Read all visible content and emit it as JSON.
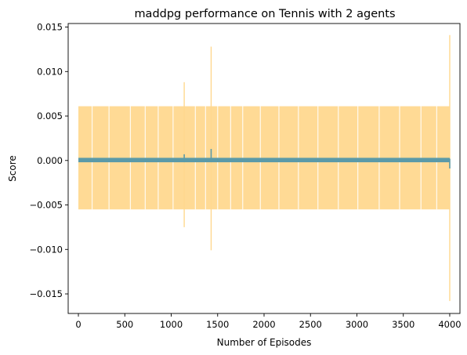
{
  "chart_data": {
    "type": "line",
    "title": "maddpg performance on Tennis with 2 agents",
    "xlabel": "Number of Episodes",
    "ylabel": "Score",
    "xlim": [
      -110,
      4110
    ],
    "ylim": [
      -0.0172,
      0.0154
    ],
    "xticks": [
      0,
      500,
      1000,
      1500,
      2000,
      2500,
      3000,
      3500,
      4000
    ],
    "xtick_labels": [
      "0",
      "500",
      "1000",
      "1500",
      "2000",
      "2500",
      "3000",
      "3500",
      "4000"
    ],
    "yticks": [
      -0.015,
      -0.01,
      -0.005,
      0.0,
      0.005,
      0.01,
      0.015
    ],
    "ytick_labels": [
      "−0.015",
      "−0.010",
      "−0.005",
      "0.000",
      "0.005",
      "0.010",
      "0.015"
    ],
    "grid": false,
    "series": [
      {
        "style": "band",
        "color": "#ffd88f",
        "x_range": [
          0,
          4000
        ],
        "upper": 0.0061,
        "lower": -0.0055,
        "gaps_x": [
          148,
          330,
          560,
          720,
          860,
          1020,
          1260,
          1370,
          1500,
          1640,
          1770,
          1960,
          2160,
          2370,
          2580,
          2800,
          3010,
          3240,
          3460,
          3690,
          3860
        ],
        "spikes": [
          {
            "x": 1140,
            "upper": 0.0088,
            "lower": -0.0075
          },
          {
            "x": 1430,
            "upper": 0.0128,
            "lower": -0.0101
          },
          {
            "x": 4000,
            "upper": 0.0141,
            "lower": -0.0158
          }
        ]
      },
      {
        "style": "line",
        "color": "#5b9aa8",
        "x_range": [
          0,
          4000
        ],
        "upper": 0.0003,
        "lower": -0.0002,
        "spikes": [
          {
            "x": 1140,
            "upper": 0.0007,
            "lower": -0.0002
          },
          {
            "x": 1430,
            "upper": 0.0013,
            "lower": -0.0002
          },
          {
            "x": 4000,
            "upper": 0.0002,
            "lower": -0.0009
          }
        ]
      }
    ]
  }
}
